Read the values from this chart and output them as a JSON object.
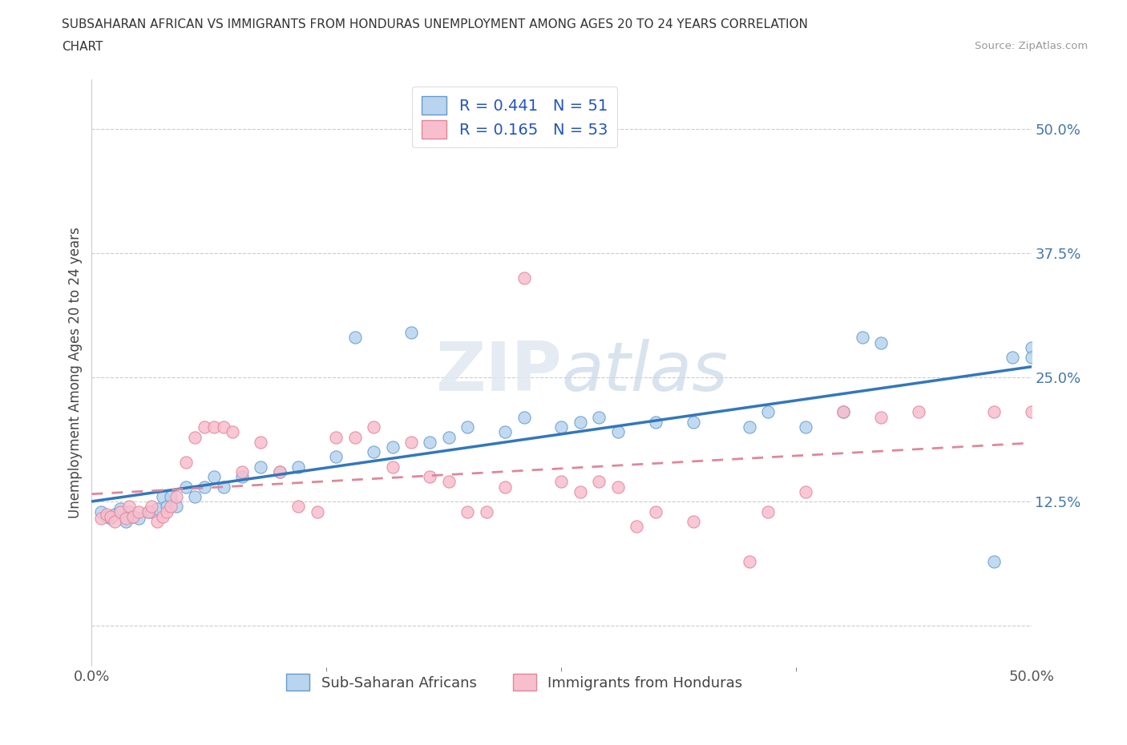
{
  "title_line1": "SUBSAHARAN AFRICAN VS IMMIGRANTS FROM HONDURAS UNEMPLOYMENT AMONG AGES 20 TO 24 YEARS CORRELATION",
  "title_line2": "CHART",
  "source": "Source: ZipAtlas.com",
  "ylabel": "Unemployment Among Ages 20 to 24 years",
  "R_blue": 0.441,
  "N_blue": 51,
  "R_pink": 0.165,
  "N_pink": 53,
  "blue_face_color": "#b8d4ee",
  "blue_edge_color": "#6699cc",
  "pink_face_color": "#f8bece",
  "pink_edge_color": "#dd8899",
  "blue_line_color": "#3377bb",
  "pink_line_color": "#dd8899",
  "grid_color": "#cccccc",
  "legend_label_blue": "Sub-Saharan Africans",
  "legend_label_pink": "Immigrants from Honduras",
  "xlim": [
    0.0,
    0.5
  ],
  "ylim": [
    -0.04,
    0.55
  ],
  "blue_x": [
    0.005,
    0.008,
    0.01,
    0.012,
    0.015,
    0.018,
    0.02,
    0.022,
    0.025,
    0.03,
    0.032,
    0.035,
    0.038,
    0.04,
    0.042,
    0.045,
    0.05,
    0.055,
    0.06,
    0.065,
    0.07,
    0.08,
    0.09,
    0.1,
    0.11,
    0.13,
    0.14,
    0.15,
    0.16,
    0.17,
    0.18,
    0.19,
    0.2,
    0.22,
    0.23,
    0.25,
    0.26,
    0.27,
    0.28,
    0.3,
    0.32,
    0.35,
    0.36,
    0.38,
    0.4,
    0.41,
    0.42,
    0.48,
    0.49,
    0.5,
    0.5
  ],
  "blue_y": [
    0.115,
    0.11,
    0.108,
    0.112,
    0.118,
    0.105,
    0.115,
    0.11,
    0.108,
    0.115,
    0.115,
    0.118,
    0.13,
    0.12,
    0.13,
    0.12,
    0.14,
    0.13,
    0.14,
    0.15,
    0.14,
    0.15,
    0.16,
    0.155,
    0.16,
    0.17,
    0.29,
    0.175,
    0.18,
    0.295,
    0.185,
    0.19,
    0.2,
    0.195,
    0.21,
    0.2,
    0.205,
    0.21,
    0.195,
    0.205,
    0.205,
    0.2,
    0.215,
    0.2,
    0.215,
    0.29,
    0.285,
    0.065,
    0.27,
    0.28,
    0.27
  ],
  "pink_x": [
    0.005,
    0.008,
    0.01,
    0.012,
    0.015,
    0.018,
    0.02,
    0.022,
    0.025,
    0.03,
    0.032,
    0.035,
    0.038,
    0.04,
    0.042,
    0.045,
    0.05,
    0.055,
    0.06,
    0.065,
    0.07,
    0.075,
    0.08,
    0.09,
    0.1,
    0.11,
    0.12,
    0.13,
    0.14,
    0.15,
    0.16,
    0.17,
    0.18,
    0.19,
    0.2,
    0.21,
    0.22,
    0.23,
    0.25,
    0.26,
    0.27,
    0.28,
    0.29,
    0.3,
    0.32,
    0.35,
    0.36,
    0.38,
    0.4,
    0.42,
    0.44,
    0.48,
    0.5
  ],
  "pink_y": [
    0.108,
    0.112,
    0.11,
    0.105,
    0.115,
    0.108,
    0.12,
    0.11,
    0.115,
    0.115,
    0.12,
    0.105,
    0.11,
    0.115,
    0.12,
    0.13,
    0.165,
    0.19,
    0.2,
    0.2,
    0.2,
    0.195,
    0.155,
    0.185,
    0.155,
    0.12,
    0.115,
    0.19,
    0.19,
    0.2,
    0.16,
    0.185,
    0.15,
    0.145,
    0.115,
    0.115,
    0.14,
    0.35,
    0.145,
    0.135,
    0.145,
    0.14,
    0.1,
    0.115,
    0.105,
    0.065,
    0.115,
    0.135,
    0.215,
    0.21,
    0.215,
    0.215,
    0.215
  ]
}
